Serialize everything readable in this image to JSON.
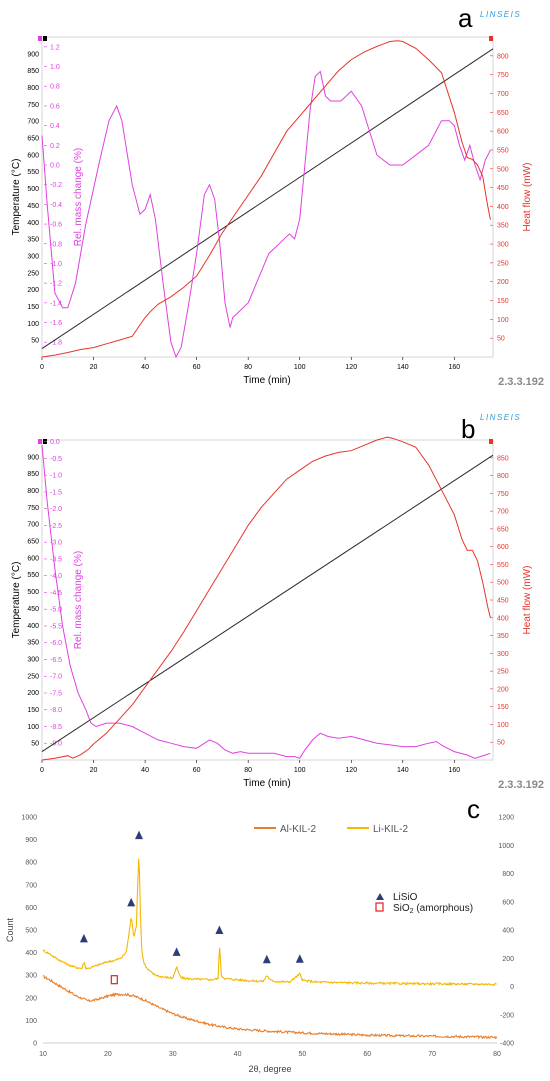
{
  "chart_data": [
    {
      "panel_letter": "a",
      "brand": "LINSEIS",
      "version": "2.3.3.192",
      "type": "line",
      "xlabel": "Time (min)",
      "xlim": [
        0,
        175
      ],
      "xticks": [
        0,
        20,
        40,
        60,
        80,
        100,
        120,
        140,
        160
      ],
      "axes": {
        "temperature": {
          "label": "Temperature (°C)",
          "ylim": [
            0,
            950
          ],
          "ticks": [
            50,
            100,
            150,
            200,
            250,
            300,
            350,
            400,
            450,
            500,
            550,
            600,
            650,
            700,
            750,
            800,
            850,
            900
          ],
          "color": "#000000"
        },
        "mass": {
          "label": "Rel. mass change (%)",
          "ylim": [
            -1.95,
            1.3
          ],
          "ticks": [
            -1.8,
            -1.6,
            -1.4,
            -1.2,
            -1.0,
            -0.8,
            -0.6,
            -0.4,
            -0.2,
            0.0,
            0.2,
            0.4,
            0.6,
            0.8,
            1.0,
            1.2
          ],
          "color": "#e040e0"
        },
        "heat": {
          "label": "Heat flow (mW)",
          "ylim": [
            0,
            850
          ],
          "ticks": [
            50,
            100,
            150,
            200,
            250,
            300,
            350,
            400,
            450,
            500,
            550,
            600,
            650,
            700,
            750,
            800
          ],
          "color": "#e8342a"
        }
      },
      "series": [
        {
          "axis": "temperature",
          "color": "#2a2a2a",
          "x": [
            0,
            175
          ],
          "y": [
            25,
            915
          ]
        },
        {
          "axis": "mass",
          "color": "#e040e0",
          "x": [
            0,
            2,
            5,
            8,
            10,
            13,
            17,
            22,
            26,
            29,
            31,
            35,
            38,
            40,
            42,
            44,
            47,
            50,
            52,
            54,
            57,
            60,
            63,
            65,
            67,
            69,
            71,
            73,
            74,
            76,
            80,
            84,
            88,
            92,
            96,
            98,
            100,
            102,
            104,
            106,
            108,
            110,
            112,
            116,
            120,
            124,
            130,
            135,
            140,
            145,
            150,
            155,
            158,
            160,
            162,
            164,
            166,
            168,
            170,
            172,
            174
          ],
          "y": [
            0.3,
            -0.4,
            -1.3,
            -1.45,
            -1.45,
            -1.2,
            -0.6,
            0.0,
            0.45,
            0.6,
            0.45,
            -0.2,
            -0.5,
            -0.45,
            -0.3,
            -0.55,
            -1.2,
            -1.8,
            -1.95,
            -1.85,
            -1.4,
            -0.9,
            -0.3,
            -0.2,
            -0.35,
            -0.8,
            -1.4,
            -1.65,
            -1.55,
            -1.5,
            -1.4,
            -1.15,
            -0.9,
            -0.8,
            -0.7,
            -0.75,
            -0.55,
            0.0,
            0.55,
            0.9,
            0.95,
            0.7,
            0.65,
            0.65,
            0.75,
            0.6,
            0.1,
            0.0,
            0.0,
            0.1,
            0.2,
            0.45,
            0.45,
            0.4,
            0.2,
            0.05,
            0.2,
            0.0,
            -0.15,
            0.05,
            0.15
          ]
        },
        {
          "axis": "heat",
          "color": "#e8342a",
          "x": [
            0,
            5,
            10,
            15,
            20,
            25,
            30,
            35,
            38,
            40,
            42,
            45,
            50,
            55,
            60,
            65,
            70,
            75,
            80,
            85,
            90,
            95,
            100,
            105,
            110,
            115,
            120,
            125,
            130,
            135,
            138,
            140,
            145,
            150,
            155,
            160,
            163,
            165,
            167,
            169,
            171,
            173,
            174
          ],
          "y": [
            0,
            5,
            12,
            20,
            25,
            35,
            45,
            55,
            85,
            105,
            120,
            140,
            160,
            185,
            215,
            270,
            330,
            380,
            430,
            480,
            540,
            600,
            640,
            680,
            720,
            760,
            790,
            810,
            825,
            838,
            840,
            838,
            820,
            790,
            755,
            650,
            570,
            530,
            525,
            510,
            480,
            400,
            365
          ]
        }
      ]
    },
    {
      "panel_letter": "b",
      "brand": "LINSEIS",
      "version": "2.3.3.192",
      "type": "line",
      "xlabel": "Time (min)",
      "xlim": [
        0,
        175
      ],
      "xticks": [
        0,
        20,
        40,
        60,
        80,
        100,
        120,
        140,
        160
      ],
      "axes": {
        "temperature": {
          "label": "Temperature (°C)",
          "ylim": [
            0,
            950
          ],
          "ticks": [
            50,
            100,
            150,
            200,
            250,
            300,
            350,
            400,
            450,
            500,
            550,
            600,
            650,
            700,
            750,
            800,
            850,
            900
          ],
          "color": "#000000"
        },
        "mass": {
          "label": "Rel. mass change (%)",
          "ylim": [
            -9.5,
            0.05
          ],
          "ticks": [
            -9.0,
            -8.5,
            -8.0,
            -7.5,
            -7.0,
            -6.5,
            -6.0,
            -5.5,
            -5.0,
            -4.5,
            -4.0,
            -3.5,
            -3.0,
            -2.5,
            -2.0,
            -1.5,
            -1.0,
            -0.5,
            0.0
          ],
          "color": "#e040e0"
        },
        "heat": {
          "label": "Heat flow (mW)",
          "ylim": [
            0,
            900
          ],
          "ticks": [
            50,
            100,
            150,
            200,
            250,
            300,
            350,
            400,
            450,
            500,
            550,
            600,
            650,
            700,
            750,
            800,
            850
          ],
          "color": "#e8342a"
        }
      },
      "series": [
        {
          "axis": "temperature",
          "color": "#2a2a2a",
          "x": [
            0,
            175
          ],
          "y": [
            25,
            905
          ]
        },
        {
          "axis": "mass",
          "color": "#e040e0",
          "x": [
            0,
            2,
            5,
            8,
            11,
            14,
            17,
            19,
            21,
            25,
            30,
            35,
            40,
            45,
            50,
            55,
            60,
            62,
            65,
            68,
            71,
            74,
            77,
            80,
            85,
            90,
            95,
            98,
            100,
            102,
            105,
            108,
            111,
            115,
            120,
            125,
            130,
            135,
            140,
            145,
            150,
            153,
            156,
            160,
            165,
            168,
            170,
            172,
            174
          ],
          "y": [
            -0.1,
            -1.8,
            -3.8,
            -5.5,
            -6.7,
            -7.5,
            -8.0,
            -8.4,
            -8.5,
            -8.4,
            -8.4,
            -8.5,
            -8.7,
            -8.9,
            -9.0,
            -9.1,
            -9.15,
            -9.05,
            -8.9,
            -9.0,
            -9.2,
            -9.3,
            -9.25,
            -9.3,
            -9.3,
            -9.3,
            -9.4,
            -9.4,
            -9.45,
            -9.2,
            -8.9,
            -8.7,
            -8.8,
            -8.85,
            -8.8,
            -8.9,
            -9.0,
            -9.05,
            -9.1,
            -9.1,
            -9.0,
            -8.95,
            -9.1,
            -9.25,
            -9.35,
            -9.45,
            -9.4,
            -9.35,
            -9.3
          ]
        },
        {
          "axis": "heat",
          "color": "#e8342a",
          "x": [
            0,
            5,
            10,
            12,
            15,
            18,
            20,
            25,
            30,
            35,
            40,
            45,
            50,
            55,
            60,
            65,
            70,
            75,
            80,
            85,
            90,
            95,
            100,
            105,
            110,
            115,
            120,
            125,
            130,
            134,
            136,
            140,
            145,
            150,
            155,
            160,
            163,
            165,
            167,
            169,
            171,
            173,
            174
          ],
          "y": [
            0,
            5,
            12,
            5,
            15,
            30,
            45,
            75,
            115,
            155,
            205,
            255,
            305,
            360,
            420,
            480,
            540,
            600,
            660,
            710,
            750,
            790,
            815,
            840,
            855,
            865,
            870,
            885,
            900,
            908,
            905,
            895,
            880,
            830,
            760,
            690,
            620,
            590,
            590,
            560,
            500,
            430,
            400
          ]
        }
      ]
    },
    {
      "panel_letter": "c",
      "type": "line",
      "xlabel": "2θ, degree",
      "ylabel": "Count",
      "xlim": [
        10,
        80
      ],
      "xticks": [
        10,
        20,
        30,
        40,
        50,
        60,
        70,
        80
      ],
      "ylim": [
        0,
        1000
      ],
      "yticks": [
        0,
        100,
        200,
        300,
        400,
        500,
        600,
        700,
        800,
        900,
        1000
      ],
      "y2lim": [
        -400,
        1200
      ],
      "y2ticks": [
        -400,
        -200,
        0,
        200,
        400,
        600,
        800,
        1000,
        1200
      ],
      "legend": {
        "position": "top",
        "entries": [
          {
            "name": "Al-KIL-2",
            "color": "#e87e2a"
          },
          {
            "name": "Li-KIL-2",
            "color": "#f5b800"
          }
        ]
      },
      "annotations": {
        "marker_legend": [
          {
            "symbol": "triangle",
            "label": "LiSiO",
            "color": "#2c3e78"
          },
          {
            "symbol": "square",
            "label": "SiO",
            "label_sub": "2",
            "label_tail": " (amorphous)",
            "color": "#e02020"
          }
        ],
        "triangles": [
          {
            "x": 16.3,
            "y": 463
          },
          {
            "x": 23.6,
            "y": 622
          },
          {
            "x": 24.8,
            "y": 920
          },
          {
            "x": 30.6,
            "y": 403
          },
          {
            "x": 37.2,
            "y": 500
          },
          {
            "x": 44.5,
            "y": 371
          },
          {
            "x": 49.6,
            "y": 373
          }
        ],
        "squares": [
          {
            "x": 21.0,
            "y": 280
          }
        ]
      },
      "series": [
        {
          "name": "Al-KIL-2",
          "color": "#e87e2a",
          "x": [
            10,
            11,
            12,
            13,
            14,
            15,
            16,
            17,
            18,
            19,
            20,
            21,
            22,
            23,
            24,
            25,
            26,
            27,
            28,
            30,
            32,
            34,
            36,
            38,
            40,
            45,
            50,
            55,
            60,
            65,
            70,
            75,
            80
          ],
          "y": [
            295,
            280,
            262,
            245,
            228,
            210,
            198,
            186,
            190,
            198,
            208,
            214,
            216,
            214,
            208,
            198,
            185,
            170,
            155,
            130,
            110,
            95,
            80,
            70,
            62,
            52,
            45,
            40,
            35,
            32,
            30,
            28,
            25
          ]
        },
        {
          "name": "Li-KIL-2",
          "color": "#f5b800",
          "x": [
            10,
            11,
            12,
            13,
            14,
            15,
            16,
            16.3,
            16.6,
            17,
            18,
            19,
            20,
            21,
            22,
            22.8,
            23.2,
            23.6,
            24.0,
            24.4,
            24.6,
            24.8,
            25.0,
            25.2,
            25.5,
            26,
            27,
            28,
            29,
            30,
            30.6,
            31.2,
            32,
            34,
            36,
            37,
            37.2,
            37.5,
            38,
            40,
            42,
            44,
            44.5,
            45,
            46,
            48,
            49.6,
            50,
            52,
            55,
            60,
            65,
            70,
            75,
            80
          ],
          "y": [
            410,
            395,
            375,
            360,
            345,
            335,
            330,
            360,
            332,
            330,
            340,
            350,
            360,
            365,
            375,
            400,
            470,
            560,
            470,
            520,
            700,
            850,
            600,
            420,
            360,
            330,
            305,
            295,
            290,
            288,
            335,
            290,
            285,
            282,
            280,
            285,
            440,
            300,
            285,
            280,
            275,
            273,
            300,
            278,
            272,
            270,
            305,
            278,
            270,
            268,
            265,
            263,
            262,
            261,
            260
          ]
        }
      ]
    }
  ]
}
